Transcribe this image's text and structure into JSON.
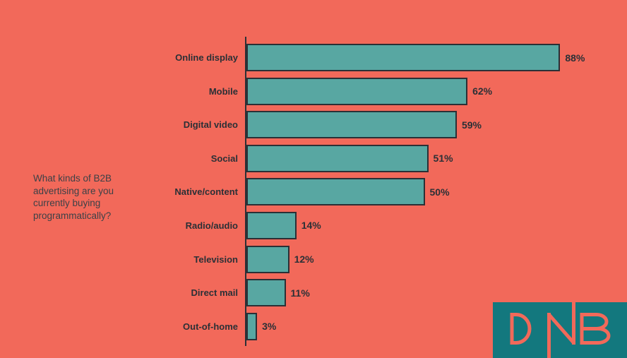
{
  "colors": {
    "background": "#F2695A",
    "bar_fill": "#58A7A2",
    "dark_text": "#2B3036",
    "question_text": "#3C4147",
    "logo_box": "#13787E",
    "logo_letters": "#F2695A"
  },
  "question": "What kinds of B2B\nadvertising are you\ncurrently buying\nprogrammatically?",
  "logo": {
    "text": "DNB",
    "box_color": "#13787E",
    "letter_color": "#F2695A"
  },
  "chart_data": {
    "type": "bar",
    "orientation": "horizontal",
    "title": "What kinds of B2B advertising are you currently buying programmatically?",
    "categories": [
      "Online display",
      "Mobile",
      "Digital video",
      "Social",
      "Native/content",
      "Radio/audio",
      "Television",
      "Direct mail",
      "Out-of-home"
    ],
    "values": [
      88,
      62,
      59,
      51,
      50,
      14,
      12,
      11,
      3
    ],
    "value_suffix": "%",
    "value_labels": [
      "88%",
      "62%",
      "59%",
      "51%",
      "50%",
      "14%",
      "12%",
      "11%",
      "3%"
    ],
    "xlabel": "",
    "ylabel": "",
    "xlim": [
      0,
      100
    ],
    "grid": false,
    "legend": null,
    "bar_color": "#58A7A2",
    "bar_border_color": "#2B3036"
  }
}
